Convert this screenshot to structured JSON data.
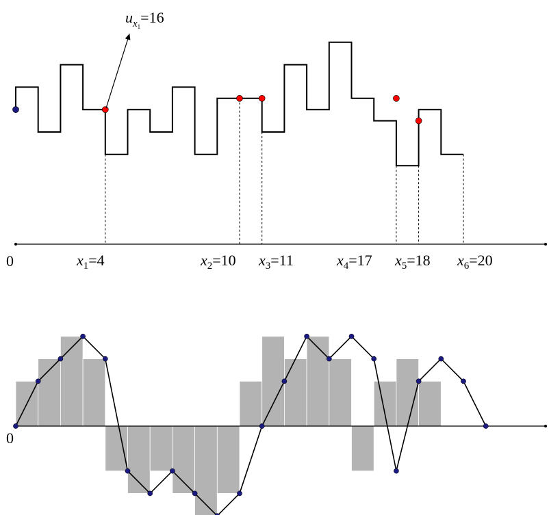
{
  "top_panel": {
    "origin_label": "0",
    "annotation": {
      "var": "u",
      "sub": "x",
      "subsub": "1",
      "eq": "=16"
    },
    "x_labels": [
      {
        "sub": "1",
        "eq": "=4"
      },
      {
        "sub": "2",
        "eq": "=10"
      },
      {
        "sub": "3",
        "eq": "=11"
      },
      {
        "sub": "4",
        "eq": "=17"
      },
      {
        "sub": "5",
        "eq": "=18"
      },
      {
        "sub": "6",
        "eq": "=20"
      }
    ],
    "step_levels": [
      14,
      10,
      16,
      12,
      8,
      12,
      10,
      14,
      8,
      13,
      13,
      10,
      16,
      12,
      18,
      13,
      11,
      7,
      12,
      8
    ],
    "marked_points": [
      {
        "x": 0,
        "level": 12,
        "kind": "start"
      },
      {
        "x": 4,
        "level": 12,
        "kind": "event"
      },
      {
        "x": 10,
        "level": 13,
        "kind": "event"
      },
      {
        "x": 11,
        "level": 13,
        "kind": "event"
      },
      {
        "x": 17,
        "level": 13,
        "kind": "event"
      },
      {
        "x": 18,
        "level": 11,
        "kind": "event"
      }
    ],
    "vertical_guides_at": [
      4,
      10,
      11,
      17,
      18,
      20
    ]
  },
  "bottom_panel": {
    "origin_label": "0",
    "bar_heights": [
      2,
      3,
      4,
      3,
      -2,
      -3,
      -2,
      -3,
      -4,
      -3,
      2,
      4,
      3,
      4,
      3,
      -2,
      2,
      3,
      2
    ],
    "polyline_values": [
      0,
      2,
      3,
      4,
      3,
      -2,
      -3,
      -2,
      -3,
      -4,
      -3,
      0,
      2,
      4,
      3,
      4,
      3,
      -2,
      2,
      3,
      2,
      0
    ]
  },
  "colors": {
    "line": "#000000",
    "bar_fill": "#b3b3b3",
    "event_point": "#ff0000",
    "vertex_point": "#1a1a80"
  }
}
